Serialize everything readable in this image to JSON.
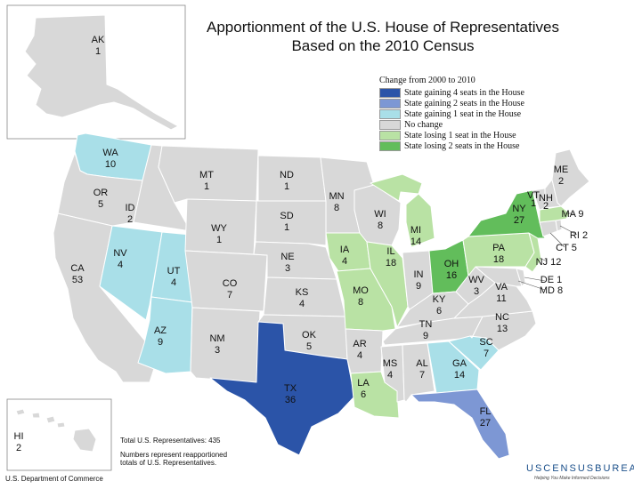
{
  "title_line1": "Apportionment of the U.S. House of Representatives",
  "title_line2": "Based on the 2010 Census",
  "legend": {
    "heading": "Change from 2000 to 2010",
    "items": [
      {
        "label": "State gaining 4 seats in the House",
        "color": "#2b54a8"
      },
      {
        "label": "State gaining 2 seats in the House",
        "color": "#7d97d4"
      },
      {
        "label": "State gaining 1 seat in the House",
        "color": "#a9dfe8"
      },
      {
        "label": "No change",
        "color": "#d8d8d8"
      },
      {
        "label": "State losing 1 seat in the House",
        "color": "#b9e2a4"
      },
      {
        "label": "State losing 2 seats in the House",
        "color": "#62bd5b"
      }
    ]
  },
  "states": {
    "WA": {
      "abbr": "WA",
      "seats": "10",
      "change": "+1"
    },
    "OR": {
      "abbr": "OR",
      "seats": "5",
      "change": "0"
    },
    "CA": {
      "abbr": "CA",
      "seats": "53",
      "change": "0"
    },
    "ID": {
      "abbr": "ID",
      "seats": "2",
      "change": "0"
    },
    "NV": {
      "abbr": "NV",
      "seats": "4",
      "change": "+1"
    },
    "UT": {
      "abbr": "UT",
      "seats": "4",
      "change": "+1"
    },
    "AZ": {
      "abbr": "AZ",
      "seats": "9",
      "change": "+1"
    },
    "MT": {
      "abbr": "MT",
      "seats": "1",
      "change": "0"
    },
    "WY": {
      "abbr": "WY",
      "seats": "1",
      "change": "0"
    },
    "CO": {
      "abbr": "CO",
      "seats": "7",
      "change": "0"
    },
    "NM": {
      "abbr": "NM",
      "seats": "3",
      "change": "0"
    },
    "ND": {
      "abbr": "ND",
      "seats": "1",
      "change": "0"
    },
    "SD": {
      "abbr": "SD",
      "seats": "1",
      "change": "0"
    },
    "NE": {
      "abbr": "NE",
      "seats": "3",
      "change": "0"
    },
    "KS": {
      "abbr": "KS",
      "seats": "4",
      "change": "0"
    },
    "OK": {
      "abbr": "OK",
      "seats": "5",
      "change": "0"
    },
    "TX": {
      "abbr": "TX",
      "seats": "36",
      "change": "+4"
    },
    "MN": {
      "abbr": "MN",
      "seats": "8",
      "change": "0"
    },
    "IA": {
      "abbr": "IA",
      "seats": "4",
      "change": "-1"
    },
    "MO": {
      "abbr": "MO",
      "seats": "8",
      "change": "-1"
    },
    "AR": {
      "abbr": "AR",
      "seats": "4",
      "change": "0"
    },
    "LA": {
      "abbr": "LA",
      "seats": "6",
      "change": "-1"
    },
    "WI": {
      "abbr": "WI",
      "seats": "8",
      "change": "0"
    },
    "IL": {
      "abbr": "IL",
      "seats": "18",
      "change": "-1"
    },
    "MI": {
      "abbr": "MI",
      "seats": "14",
      "change": "-1"
    },
    "IN": {
      "abbr": "IN",
      "seats": "9",
      "change": "0"
    },
    "OH": {
      "abbr": "OH",
      "seats": "16",
      "change": "-2"
    },
    "KY": {
      "abbr": "KY",
      "seats": "6",
      "change": "0"
    },
    "TN": {
      "abbr": "TN",
      "seats": "9",
      "change": "0"
    },
    "MS": {
      "abbr": "MS",
      "seats": "4",
      "change": "0"
    },
    "AL": {
      "abbr": "AL",
      "seats": "7",
      "change": "0"
    },
    "GA": {
      "abbr": "GA",
      "seats": "14",
      "change": "+1"
    },
    "FL": {
      "abbr": "FL",
      "seats": "27",
      "change": "+2"
    },
    "SC": {
      "abbr": "SC",
      "seats": "7",
      "change": "+1"
    },
    "NC": {
      "abbr": "NC",
      "seats": "13",
      "change": "0"
    },
    "VA": {
      "abbr": "VA",
      "seats": "11",
      "change": "0"
    },
    "WV": {
      "abbr": "WV",
      "seats": "3",
      "change": "0"
    },
    "PA": {
      "abbr": "PA",
      "seats": "18",
      "change": "-1"
    },
    "NY": {
      "abbr": "NY",
      "seats": "27",
      "change": "-2"
    },
    "VT": {
      "abbr": "VT",
      "seats": "1",
      "change": "0"
    },
    "NH": {
      "abbr": "NH",
      "seats": "2",
      "change": "0"
    },
    "ME": {
      "abbr": "ME",
      "seats": "2",
      "change": "0"
    },
    "MA": {
      "abbr": "MA",
      "seats": "9",
      "change": "-1"
    },
    "RI": {
      "abbr": "RI",
      "seats": "2",
      "change": "0"
    },
    "CT": {
      "abbr": "CT",
      "seats": "5",
      "change": "0"
    },
    "NJ": {
      "abbr": "NJ",
      "seats": "12",
      "change": "-1"
    },
    "DE": {
      "abbr": "DE",
      "seats": "1",
      "change": "0"
    },
    "MD": {
      "abbr": "MD",
      "seats": "8",
      "change": "0"
    },
    "AK": {
      "abbr": "AK",
      "seats": "1",
      "change": "0"
    },
    "HI": {
      "abbr": "HI",
      "seats": "2",
      "change": "0"
    }
  },
  "total_note": "Total U.S. Representatives: 435",
  "numbers_note_line1": "Numbers represent reapportioned",
  "numbers_note_line2": "totals of U.S. Representatives.",
  "census_logo": "USCENSUSBUREAU",
  "census_tagline": "Helping You Make Informed Decisions",
  "department": "U.S. Department of Commerce"
}
